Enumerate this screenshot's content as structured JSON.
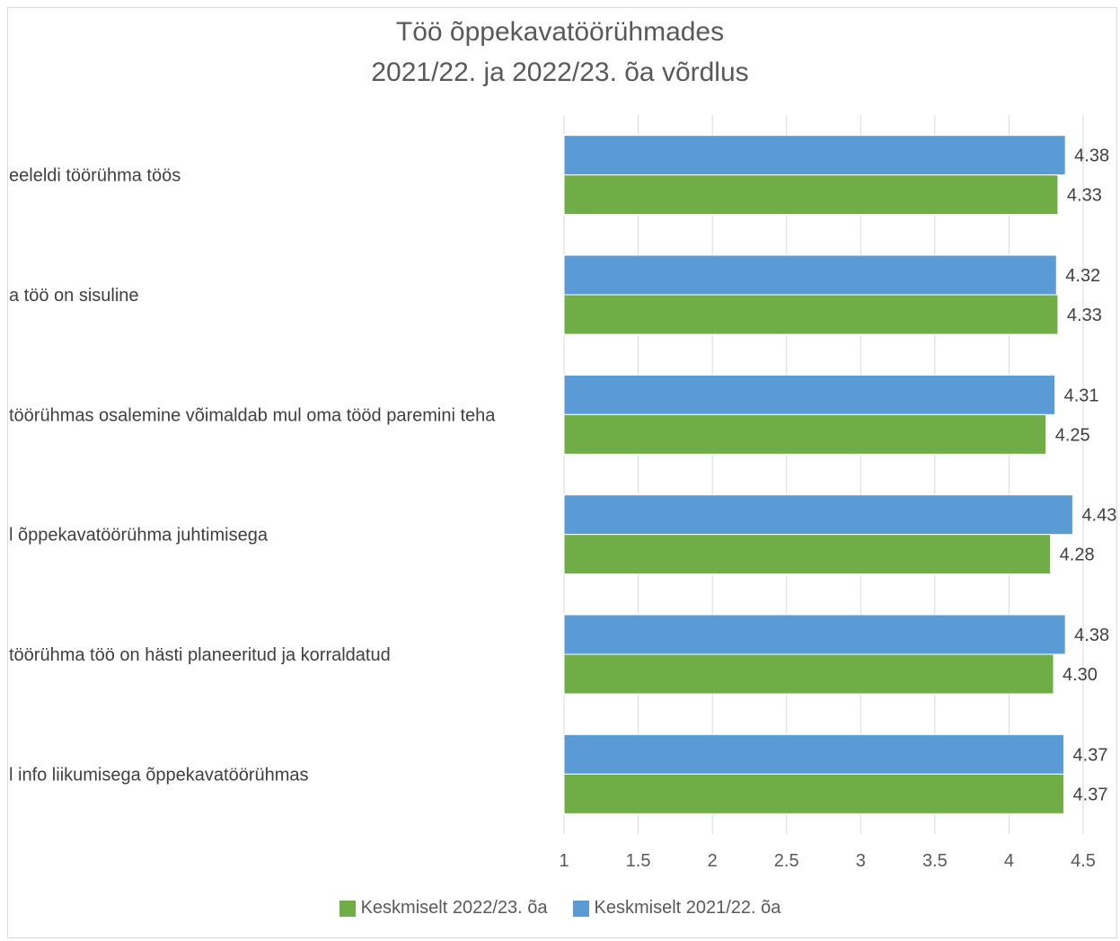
{
  "chart_data": {
    "type": "bar",
    "orientation": "horizontal",
    "title_line1": "Töö õppekavatöörühmades",
    "title_line2": "2021/22. ja 2022/23. õa võrdlus",
    "categories": [
      "eeleldi töörühma töös",
      "a töö on sisuline",
      "töörühmas osalemine võimaldab mul oma tööd paremini teha",
      "l õppekavatöörühma juhtimisega",
      "töörühma töö on hästi planeeritud ja korraldatud",
      "l info liikumisega õppekavatöörühmas"
    ],
    "series": [
      {
        "name": "Keskmiselt 2021/22. õa",
        "color": "#5b9bd5",
        "values": [
          4.38,
          4.32,
          4.31,
          4.43,
          4.38,
          4.37
        ],
        "labels": [
          "4.38",
          "4.32",
          "4.31",
          "4.43",
          "4.38",
          "4.37"
        ]
      },
      {
        "name": "Keskmiselt 2022/23. õa",
        "color": "#70ad47",
        "values": [
          4.33,
          4.33,
          4.25,
          4.28,
          4.3,
          4.37
        ],
        "labels": [
          "4.33",
          "4.33",
          "4.25",
          "4.28",
          "4.30",
          "4.37"
        ]
      }
    ],
    "xlim": [
      1,
      4.5
    ],
    "xticks": [
      1,
      1.5,
      2,
      2.5,
      3,
      3.5,
      4,
      4.5
    ],
    "xtick_labels": [
      "1",
      "1.5",
      "2",
      "2.5",
      "3",
      "3.5",
      "4",
      "4.5"
    ],
    "grid": true,
    "gridline_color": "#d9d9d9",
    "legend": {
      "position": "bottom",
      "order": [
        "Keskmiselt 2022/23. õa",
        "Keskmiselt 2021/22. õa"
      ]
    }
  }
}
